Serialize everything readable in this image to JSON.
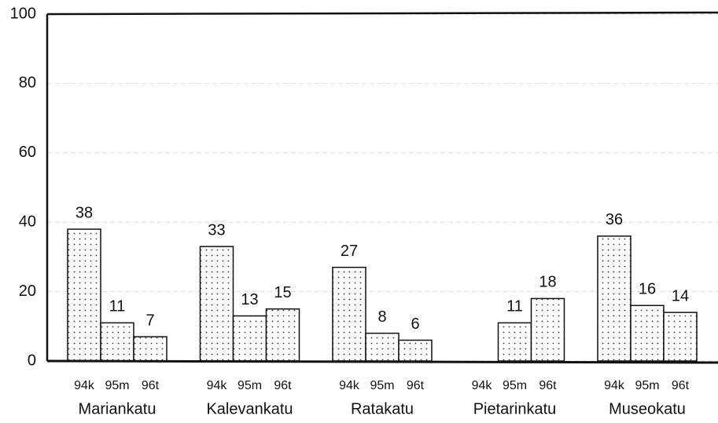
{
  "chart_data": {
    "type": "bar",
    "categories": [
      "Mariankatu",
      "Kalevankatu",
      "Ratakatu",
      "Pietarinkatu",
      "Museokatu"
    ],
    "series": [
      {
        "name": "94k",
        "color": "#ffffff",
        "values": [
          38,
          33,
          27,
          null,
          36
        ]
      },
      {
        "name": "95m",
        "color": "#ffffff",
        "values": [
          11,
          13,
          8,
          11,
          16
        ]
      },
      {
        "name": "96t",
        "color": "#ffffff",
        "values": [
          7,
          15,
          6,
          18,
          14
        ]
      }
    ],
    "ylim": [
      0,
      100
    ],
    "yticks": [
      0,
      20,
      40,
      60,
      80,
      100
    ],
    "grid": true
  }
}
